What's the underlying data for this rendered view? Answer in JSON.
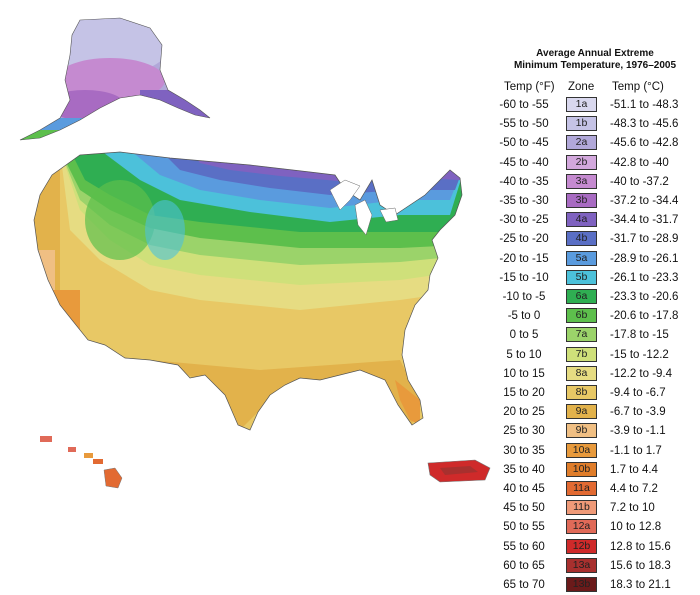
{
  "legend": {
    "title_line1": "Average Annual Extreme",
    "title_line2": "Minimum Temperature, 1976–2005",
    "header_f": "Temp (°F)",
    "header_zone": "Zone",
    "header_c": "Temp (°C)",
    "rows": [
      {
        "f": "-60 to -55",
        "zone": "1a",
        "c": "-51.1 to -48.3",
        "color": "#d9d8ee"
      },
      {
        "f": "-55 to -50",
        "zone": "1b",
        "c": "-48.3 to -45.6",
        "color": "#c5c3e6"
      },
      {
        "f": "-50 to -45",
        "zone": "2a",
        "c": "-45.6 to -42.8",
        "color": "#b1a8d9"
      },
      {
        "f": "-45 to -40",
        "zone": "2b",
        "c": "-42.8 to -40",
        "color": "#d3a8dd"
      },
      {
        "f": "-40 to -35",
        "zone": "3a",
        "c": "-40 to -37.2",
        "color": "#c58ad0"
      },
      {
        "f": "-35 to -30",
        "zone": "3b",
        "c": "-37.2 to -34.4",
        "color": "#a86bc2"
      },
      {
        "f": "-30 to -25",
        "zone": "4a",
        "c": "-34.4 to -31.7",
        "color": "#7f62c0"
      },
      {
        "f": "-25 to -20",
        "zone": "4b",
        "c": "-31.7 to -28.9",
        "color": "#5a6fc5"
      },
      {
        "f": "-20 to -15",
        "zone": "5a",
        "c": "-28.9 to -26.1",
        "color": "#5a9bde"
      },
      {
        "f": "-15 to -10",
        "zone": "5b",
        "c": "-26.1 to -23.3",
        "color": "#4cc1da"
      },
      {
        "f": "-10 to -5",
        "zone": "6a",
        "c": "-23.3 to -20.6",
        "color": "#2fae52"
      },
      {
        "f": "-5 to 0",
        "zone": "6b",
        "c": "-20.6 to -17.8",
        "color": "#5dbf4c"
      },
      {
        "f": "0 to 5",
        "zone": "7a",
        "c": "-17.8 to -15",
        "color": "#9bd36a"
      },
      {
        "f": "5 to 10",
        "zone": "7b",
        "c": "-15 to -12.2",
        "color": "#cfe07a"
      },
      {
        "f": "10 to 15",
        "zone": "8a",
        "c": "-12.2 to -9.4",
        "color": "#e6dc82"
      },
      {
        "f": "15 to 20",
        "zone": "8b",
        "c": "-9.4 to -6.7",
        "color": "#e8c865"
      },
      {
        "f": "20 to 25",
        "zone": "9a",
        "c": "-6.7 to -3.9",
        "color": "#e2b24b"
      },
      {
        "f": "25 to 30",
        "zone": "9b",
        "c": "-3.9 to -1.1",
        "color": "#f0bf83"
      },
      {
        "f": "30 to 35",
        "zone": "10a",
        "c": "-1.1 to 1.7",
        "color": "#e89a3c"
      },
      {
        "f": "35 to 40",
        "zone": "10b",
        "c": "1.7 to 4.4",
        "color": "#e07d2a"
      },
      {
        "f": "40 to 45",
        "zone": "11a",
        "c": "4.4 to 7.2",
        "color": "#e26a32"
      },
      {
        "f": "45 to 50",
        "zone": "11b",
        "c": "7.2 to 10",
        "color": "#ef9a78"
      },
      {
        "f": "50 to 55",
        "zone": "12a",
        "c": "10 to 12.8",
        "color": "#e06a58"
      },
      {
        "f": "55 to 60",
        "zone": "12b",
        "c": "12.8 to 15.6",
        "color": "#cf2a2a"
      },
      {
        "f": "60 to 65",
        "zone": "13a",
        "c": "15.6 to 18.3",
        "color": "#a8302e"
      },
      {
        "f": "65 to 70",
        "zone": "13b",
        "c": "18.3 to 21.1",
        "color": "#6b1a1a"
      }
    ]
  }
}
